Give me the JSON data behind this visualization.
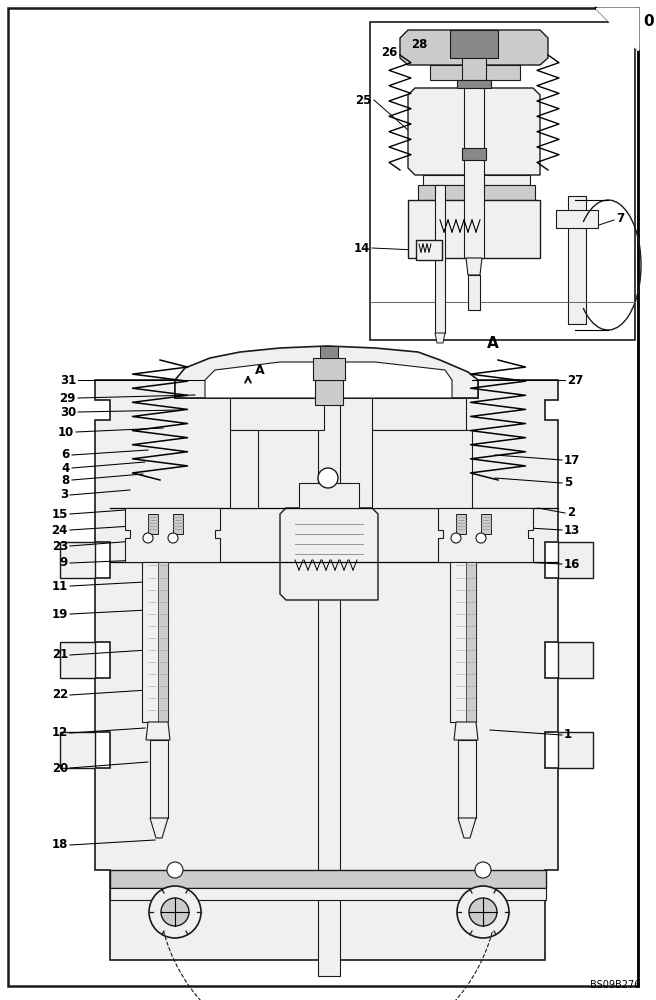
{
  "bg": "#ffffff",
  "lc": "#1a1a1a",
  "fc_white": "#ffffff",
  "fc_light": "#f0f0f0",
  "fc_med": "#cccccc",
  "fc_dark": "#888888",
  "figsize": [
    6.56,
    10.0
  ],
  "dpi": 100,
  "watermark": "BS09B276",
  "border_lw": 1.8
}
